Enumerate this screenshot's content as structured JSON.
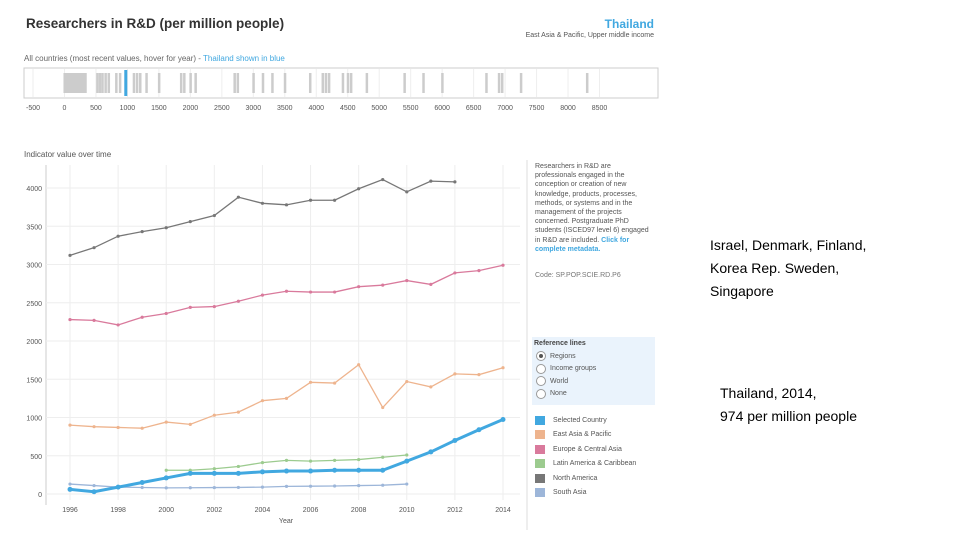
{
  "header": {
    "title": "Researchers in R&D (per million people)",
    "country": "Thailand",
    "region": "East Asia & Pacific, Upper middle income"
  },
  "strip": {
    "note": "All countries (most recent values, hover for year) - ",
    "note_highlight": "Thailand shown in blue",
    "ticks": [
      -500,
      0,
      500,
      1000,
      1500,
      2000,
      2500,
      3000,
      3500,
      4000,
      4500,
      5000,
      5500,
      6000,
      6500,
      7000,
      7500,
      8000,
      8500
    ],
    "range": [
      -500,
      9000
    ],
    "highlight_value": 974,
    "highlight_color": "#41a8e0",
    "country_values": [
      0,
      30,
      60,
      90,
      120,
      150,
      180,
      210,
      240,
      270,
      300,
      330,
      520,
      560,
      600,
      650,
      700,
      820,
      880,
      1100,
      1150,
      1200,
      1300,
      1500,
      1850,
      1900,
      2000,
      2080,
      2700,
      2750,
      3000,
      3150,
      3300,
      3500,
      3900,
      4100,
      4150,
      4200,
      4420,
      4500,
      4550,
      4800,
      5400,
      5700,
      6000,
      6700,
      6900,
      6950,
      7250,
      8300
    ]
  },
  "description": {
    "text": "Researchers in R&D are professionals engaged in the conception or creation of new knowledge, products, processes, methods, or systems and in the management of the projects concerned. Postgraduate PhD students (ISCED97 level 6) engaged in R&D are included. ",
    "link": "Click for complete metadata.",
    "code": "Code: SP.POP.SCIE.RD.P6"
  },
  "reference_lines": {
    "title": "Reference lines",
    "options": [
      "Regions",
      "Income groups",
      "World",
      "None"
    ],
    "selected": "Regions"
  },
  "chart_data": {
    "type": "line",
    "title": "Indicator value over time",
    "xlabel": "Year",
    "ylabel": "",
    "xlim": [
      1996,
      2014
    ],
    "ylim": [
      0,
      4200
    ],
    "grid": true,
    "xticks": [
      1996,
      1998,
      2000,
      2002,
      2004,
      2006,
      2008,
      2010,
      2012,
      2014
    ],
    "yticks": [
      0,
      500,
      1000,
      1500,
      2000,
      2500,
      3000,
      3500,
      4000
    ],
    "legend_position": "right",
    "series": [
      {
        "name": "North America",
        "color": "#777777",
        "start": 1996,
        "values": [
          3120,
          3220,
          3370,
          3430,
          3480,
          3560,
          3640,
          3880,
          3800,
          3780,
          3840,
          3840,
          3990,
          4110,
          3950,
          4090,
          4080
        ]
      },
      {
        "name": "Europe & Central Asia",
        "color": "#d97a9c",
        "start": 1996,
        "values": [
          2280,
          2270,
          2210,
          2310,
          2360,
          2440,
          2450,
          2520,
          2600,
          2650,
          2640,
          2640,
          2710,
          2730,
          2790,
          2740,
          2890,
          2920,
          2990
        ]
      },
      {
        "name": "East Asia & Pacific",
        "color": "#eeb48e",
        "start": 1996,
        "values": [
          900,
          880,
          870,
          860,
          940,
          910,
          1030,
          1070,
          1220,
          1250,
          1460,
          1450,
          1690,
          1130,
          1470,
          1400,
          1570,
          1560,
          1650
        ]
      },
      {
        "name": "Latin America & Caribbean",
        "color": "#9ccb8f",
        "start": 2000,
        "values": [
          310,
          310,
          330,
          360,
          410,
          440,
          430,
          440,
          450,
          480,
          510
        ]
      },
      {
        "name": "South Asia",
        "color": "#9db6d9",
        "start": 1996,
        "values": [
          130,
          110,
          90,
          85,
          80,
          82,
          84,
          86,
          90,
          100,
          102,
          105,
          110,
          115,
          130
        ]
      },
      {
        "name": "Selected Country",
        "color": "#41a8e0",
        "start": 1996,
        "values": [
          60,
          30,
          90,
          150,
          210,
          270,
          270,
          270,
          290,
          300,
          300,
          310,
          310,
          310,
          430,
          550,
          700,
          840,
          974
        ]
      }
    ],
    "legend_order": [
      "Selected Country",
      "East Asia & Pacific",
      "Europe & Central Asia",
      "Latin America & Caribbean",
      "North America",
      "South Asia"
    ]
  },
  "notes": {
    "top": [
      "Israel, Denmark, Finland,",
      "Korea Rep. Sweden,",
      "Singapore"
    ],
    "bottom": [
      "Thailand, 2014,",
      "974 per million people"
    ]
  }
}
